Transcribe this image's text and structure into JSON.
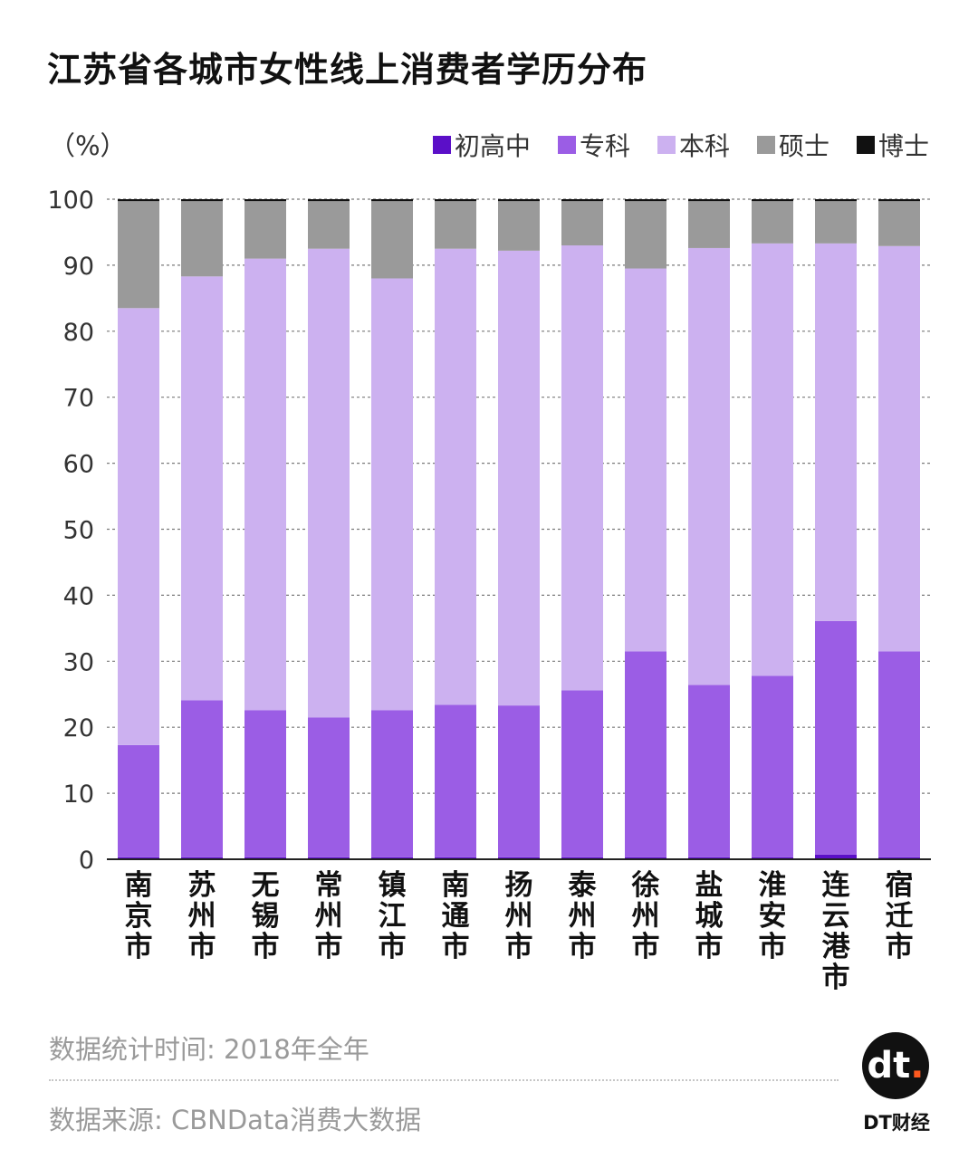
{
  "header": {
    "title": "江苏省各城市女性线上消费者学历分布",
    "unit": "（%）"
  },
  "chart_data": {
    "type": "bar",
    "stacked": true,
    "title": "江苏省各城市女性线上消费者学历分布",
    "ylabel": "（%）",
    "ylim": [
      0,
      100
    ],
    "yticks": [
      0,
      10,
      20,
      30,
      40,
      50,
      60,
      70,
      80,
      90,
      100
    ],
    "grid": true,
    "legend_position": "top-right",
    "categories": [
      "南京市",
      "苏州市",
      "无锡市",
      "常州市",
      "镇江市",
      "南通市",
      "扬州市",
      "泰州市",
      "徐州市",
      "盐城市",
      "淮安市",
      "连云港市",
      "宿迁市"
    ],
    "series": [
      {
        "name": "初高中",
        "color": "#5b0fc8",
        "values": [
          0.3,
          0.3,
          0.3,
          0.3,
          0.3,
          0.3,
          0.3,
          0.3,
          0.3,
          0.3,
          0.3,
          0.7,
          0.3
        ]
      },
      {
        "name": "专科",
        "color": "#9b5de5",
        "values": [
          17.0,
          23.8,
          22.3,
          21.2,
          22.3,
          23.1,
          23.0,
          25.3,
          31.2,
          26.1,
          27.5,
          35.4,
          31.2
        ]
      },
      {
        "name": "本科",
        "color": "#ccb1f0",
        "values": [
          66.2,
          64.2,
          68.4,
          71.0,
          65.4,
          69.1,
          68.9,
          67.4,
          58.0,
          66.2,
          65.5,
          57.2,
          61.4
        ]
      },
      {
        "name": "硕士",
        "color": "#9a9a9a",
        "values": [
          16.2,
          11.4,
          8.7,
          7.2,
          11.7,
          7.2,
          7.5,
          6.7,
          10.2,
          7.1,
          6.4,
          6.4,
          6.8
        ]
      },
      {
        "name": "博士",
        "color": "#111111",
        "values": [
          0.3,
          0.3,
          0.3,
          0.3,
          0.3,
          0.3,
          0.3,
          0.3,
          0.3,
          0.3,
          0.3,
          0.3,
          0.3
        ]
      }
    ]
  },
  "footer": {
    "time_note": "数据统计时间: 2018年全年",
    "source_note": "数据来源: CBNData消费大数据"
  },
  "brand": {
    "logo_text": "dt",
    "logo_dot": ".",
    "name": "DT财经"
  }
}
